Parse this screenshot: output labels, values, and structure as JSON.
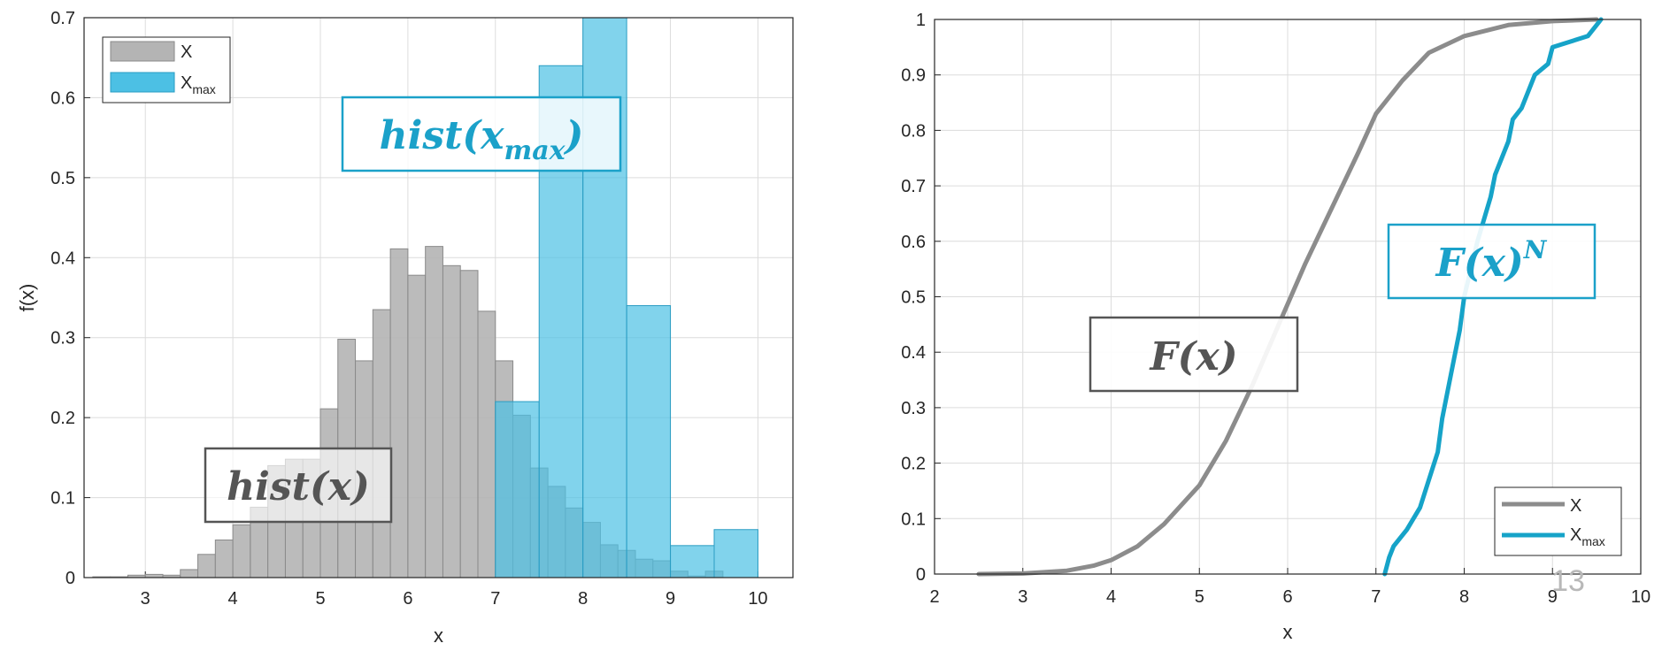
{
  "chart_data": [
    {
      "type": "bar",
      "xlabel": "x",
      "ylabel": "f(x)",
      "xlim": [
        2.3,
        10.4
      ],
      "ylim": [
        0,
        0.7
      ],
      "xticks": [
        "3",
        "4",
        "5",
        "6",
        "7",
        "8",
        "9",
        "10"
      ],
      "yticks": [
        "0",
        "0.1",
        "0.2",
        "0.3",
        "0.4",
        "0.5",
        "0.6",
        "0.7"
      ],
      "grid": true,
      "legend": {
        "placement": "top-left",
        "entries": [
          {
            "label": "X",
            "sub": "",
            "color": "#b4b4b4"
          },
          {
            "label": "X",
            "sub": "max",
            "color": "#4cc0e4"
          }
        ]
      },
      "series": [
        {
          "name": "X",
          "color": "#b4b4b4",
          "bin_width": 0.2,
          "bin_starts": [
            2.4,
            2.6,
            2.8,
            3.0,
            3.2,
            3.4,
            3.6,
            3.8,
            4.0,
            4.2,
            4.4,
            4.6,
            4.8,
            5.0,
            5.2,
            5.4,
            5.6,
            5.8,
            6.0,
            6.2,
            6.4,
            6.6,
            6.8,
            7.0,
            7.2,
            7.4,
            7.6,
            7.8,
            8.0,
            8.2,
            8.4,
            8.6,
            8.8,
            9.0,
            9.2,
            9.4
          ],
          "values": [
            0.001,
            0.001,
            0.003,
            0.004,
            0.003,
            0.01,
            0.029,
            0.047,
            0.066,
            0.088,
            0.14,
            0.148,
            0.148,
            0.211,
            0.298,
            0.271,
            0.335,
            0.411,
            0.378,
            0.414,
            0.39,
            0.384,
            0.333,
            0.271,
            0.203,
            0.137,
            0.114,
            0.087,
            0.069,
            0.041,
            0.034,
            0.023,
            0.021,
            0.008,
            0.002,
            0.008
          ]
        },
        {
          "name": "X",
          "color": "#4cc0e4",
          "bin_width": 0.5,
          "bin_starts": [
            7.0,
            7.5,
            8.0,
            8.5,
            9.0,
            9.5
          ],
          "values": [
            0.22,
            0.64,
            0.7,
            0.34,
            0.04,
            0.06
          ]
        }
      ],
      "annotations": [
        {
          "text": "hist(x_max)",
          "color": "#1ba1c9"
        },
        {
          "text": "hist(x)",
          "color": "#555555"
        }
      ]
    },
    {
      "type": "line",
      "xlabel": "x",
      "ylabel": "",
      "xlim": [
        2,
        10
      ],
      "ylim": [
        0,
        1
      ],
      "xticks": [
        "2",
        "3",
        "4",
        "5",
        "6",
        "7",
        "8",
        "9",
        "10"
      ],
      "yticks": [
        "0",
        "0.1",
        "0.2",
        "0.3",
        "0.4",
        "0.5",
        "0.6",
        "0.7",
        "0.8",
        "0.9",
        "1"
      ],
      "grid": true,
      "legend": {
        "placement": "bottom-right",
        "entries": [
          {
            "label": "X",
            "sub": "",
            "color": "#8c8c8c"
          },
          {
            "label": "X",
            "sub": "max",
            "color": "#16a3c8"
          }
        ]
      },
      "series": [
        {
          "name": "X",
          "color": "#8c8c8c",
          "x": [
            2.5,
            3.0,
            3.5,
            3.8,
            4.0,
            4.3,
            4.6,
            5.0,
            5.3,
            5.6,
            5.9,
            6.2,
            6.5,
            6.8,
            7.0,
            7.3,
            7.6,
            8.0,
            8.5,
            9.0,
            9.5
          ],
          "y": [
            0.0,
            0.001,
            0.006,
            0.015,
            0.025,
            0.05,
            0.09,
            0.16,
            0.24,
            0.34,
            0.45,
            0.56,
            0.66,
            0.76,
            0.83,
            0.89,
            0.94,
            0.97,
            0.99,
            0.997,
            1.0
          ]
        },
        {
          "name": "X",
          "color": "#16a3c8",
          "x": [
            7.1,
            7.15,
            7.2,
            7.35,
            7.5,
            7.6,
            7.7,
            7.75,
            7.85,
            7.95,
            8.0,
            8.15,
            8.3,
            8.35,
            8.5,
            8.55,
            8.65,
            8.7,
            8.8,
            8.95,
            9.0,
            9.2,
            9.4,
            9.5,
            9.55
          ],
          "y": [
            0.0,
            0.03,
            0.05,
            0.08,
            0.12,
            0.17,
            0.22,
            0.28,
            0.36,
            0.44,
            0.5,
            0.6,
            0.68,
            0.72,
            0.78,
            0.82,
            0.84,
            0.86,
            0.9,
            0.92,
            0.95,
            0.96,
            0.97,
            0.99,
            1.0
          ]
        }
      ],
      "annotations": [
        {
          "text": "F(x)^N",
          "color": "#1ba1c9"
        },
        {
          "text": "F(x)",
          "color": "#555555"
        }
      ]
    }
  ],
  "page_number": "13"
}
